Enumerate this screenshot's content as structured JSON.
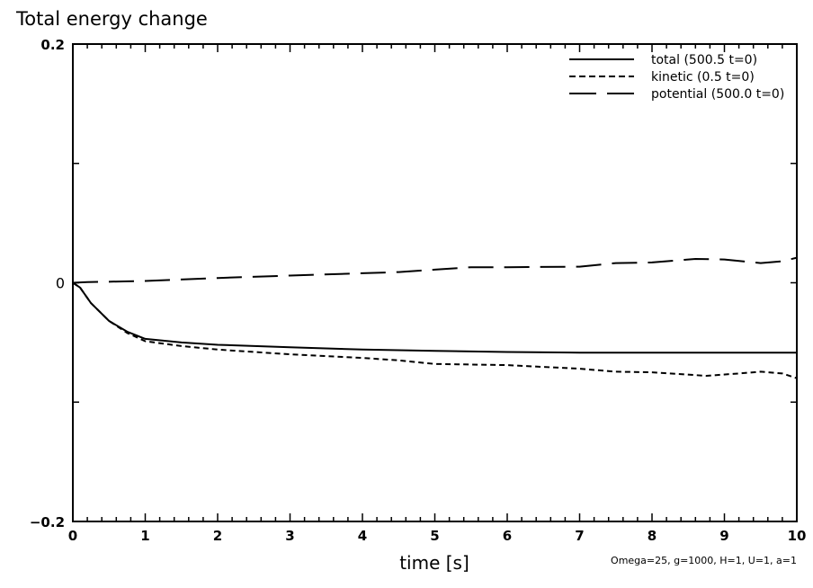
{
  "chart_data": {
    "type": "line",
    "title": "Total energy change",
    "xlabel": "time [s]",
    "ylabel": "",
    "xlim": [
      0,
      10
    ],
    "ylim": [
      -0.2,
      0.2
    ],
    "x_ticks": [
      0,
      1,
      2,
      3,
      4,
      5,
      6,
      7,
      8,
      9,
      10
    ],
    "x_tick_labels": [
      "0",
      "1",
      "2",
      "3",
      "4",
      "5",
      "6",
      "7",
      "8",
      "9",
      "10"
    ],
    "x_minor_step": 0.2,
    "y_ticks": [
      -0.2,
      -0.1,
      0,
      0.1,
      0.2
    ],
    "y_tick_labels": [
      "−0.2",
      "",
      "0",
      "",
      "0.2"
    ],
    "grid": false,
    "legend_position": "top-right",
    "annotation": "Omega=25, g=1000, H=1, U=1, a=1",
    "series": [
      {
        "name": "total (500.5 t=0)",
        "style": "solid",
        "x": [
          0,
          0.1,
          0.25,
          0.5,
          0.75,
          1,
          1.5,
          2,
          3,
          4,
          5,
          6,
          7,
          8,
          9,
          10
        ],
        "y": [
          0,
          -0.004,
          -0.017,
          -0.032,
          -0.041,
          -0.047,
          -0.05,
          -0.052,
          -0.054,
          -0.056,
          -0.057,
          -0.058,
          -0.0585,
          -0.0585,
          -0.0585,
          -0.0585
        ]
      },
      {
        "name": "kinetic (0.5 t=0)",
        "style": "dashed",
        "x": [
          0,
          0.1,
          0.25,
          0.5,
          0.75,
          1,
          1.5,
          2,
          3,
          4,
          4.5,
          5,
          6,
          7,
          7.5,
          8,
          8.75,
          9.2,
          9.5,
          9.8,
          10
        ],
        "y": [
          0,
          -0.004,
          -0.017,
          -0.032,
          -0.042,
          -0.049,
          -0.053,
          -0.056,
          -0.06,
          -0.063,
          -0.065,
          -0.068,
          -0.069,
          -0.072,
          -0.0745,
          -0.075,
          -0.078,
          -0.076,
          -0.0745,
          -0.076,
          -0.08
        ]
      },
      {
        "name": "potential (500.0 t=0)",
        "style": "long-dash",
        "x": [
          0,
          0.2,
          1,
          2,
          3,
          4,
          4.5,
          5,
          5.5,
          6,
          7,
          7.5,
          8,
          8.6,
          9,
          9.5,
          9.8,
          10
        ],
        "y": [
          0,
          0.0005,
          0.0015,
          0.004,
          0.006,
          0.008,
          0.009,
          0.011,
          0.013,
          0.013,
          0.0135,
          0.0165,
          0.017,
          0.02,
          0.0195,
          0.0165,
          0.018,
          0.021
        ]
      }
    ]
  }
}
